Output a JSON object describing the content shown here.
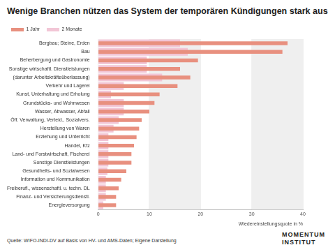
{
  "chart_data": {
    "type": "bar",
    "orientation": "horizontal",
    "title": "Wenige Branchen nützen das System der temporären Kündigungen stark aus",
    "x_label": "Wiedereinstellungsquote in %",
    "source": "Quelle: WIFO-INDI-DV auf Basis von HV- und AMS-Daten; Eigene Darstellung",
    "logo": [
      "MOMENTUM",
      "INSTITUT"
    ],
    "categories": [
      "Bergbau; Steine, Erden",
      "Bau",
      "Beherbergung und Gastronomie",
      "Sonstige wirtschaftl. Dienstleistungen",
      "(darunter Arbeitskräfteüberlassung)",
      "Verkehr und Lagerei",
      "Kunst, Unterhaltung und Erholung",
      "Grundstücks- und Wohnwesen",
      "Wasser, Abwasser, Abfall",
      "Öff. Verwaltung, Verteid., Sozialvers.",
      "Herstellung von Waren",
      "Erziehung und Unterricht",
      "Handel, Kfz",
      "Land- und Forstwirtschaft, Fischerei",
      "Sonstige Dienstleistungen",
      "Gesundheits- und Sozialwesen",
      "Information und Kommunikation",
      "Freiberufl., wissenschaftl. u. techn. DL",
      "Finanz- und Versicherungsdienstl.",
      "Energieversorgung"
    ],
    "series": [
      {
        "name": "1 Jahr",
        "color": "#e8907f",
        "values": [
          37,
          36,
          19.5,
          16,
          18,
          15.5,
          12,
          11,
          10,
          8.5,
          8,
          7.5,
          7,
          6.5,
          6.5,
          5.5,
          4.5,
          4,
          3.5,
          3.5
        ]
      },
      {
        "name": "2 Monate",
        "color": "#f2c6d6",
        "values": [
          16,
          17.5,
          9.5,
          9.5,
          12.5,
          5,
          2.5,
          5,
          5,
          4,
          3,
          2,
          2,
          2,
          2,
          1.8,
          1.5,
          1.5,
          1.5,
          1
        ]
      }
    ],
    "xlim": [
      0,
      40
    ],
    "xticks": [
      0,
      10,
      20,
      30,
      40
    ],
    "grid": true,
    "legend": "top-left"
  }
}
